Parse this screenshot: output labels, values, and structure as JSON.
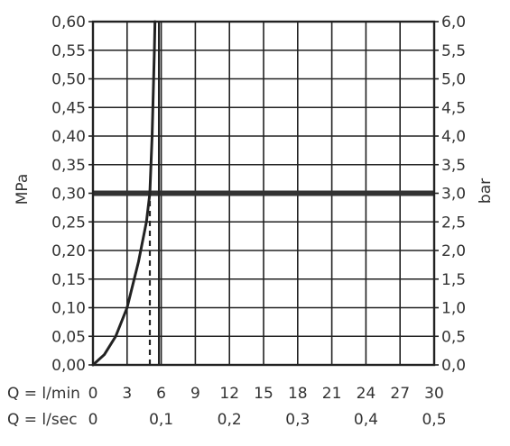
{
  "chart_data": {
    "type": "line",
    "title": "",
    "ylabel_left": "MPa",
    "ylabel_right": "bar",
    "x_rows": [
      {
        "label": "Q = l/min",
        "ticks": [
          "0",
          "3",
          "6",
          "9",
          "12",
          "15",
          "18",
          "21",
          "24",
          "27",
          "30"
        ],
        "values": [
          0,
          3,
          6,
          9,
          12,
          15,
          18,
          21,
          24,
          27,
          30
        ]
      },
      {
        "label": "Q = l/sec",
        "ticks": [
          "0",
          "0,1",
          "0,2",
          "0,3",
          "0,4",
          "0,5"
        ],
        "values": [
          0,
          0.1,
          0.2,
          0.3,
          0.4,
          0.5
        ]
      }
    ],
    "xlim": [
      0,
      30
    ],
    "ylim_left": [
      0,
      0.6
    ],
    "ylim_right": [
      0,
      6.0
    ],
    "y_ticks_left": [
      "0,00",
      "0,05",
      "0,10",
      "0,15",
      "0,20",
      "0,25",
      "0,30",
      "0,35",
      "0,40",
      "0,45",
      "0,50",
      "0,55",
      "0,60"
    ],
    "y_ticks_right": [
      "0,0",
      "0,5",
      "1,0",
      "1,5",
      "2,0",
      "2,5",
      "3,0",
      "3,5",
      "4,0",
      "4,5",
      "5,0",
      "5,5",
      "6,0"
    ],
    "y_tick_values": [
      0,
      0.05,
      0.1,
      0.15,
      0.2,
      0.25,
      0.3,
      0.35,
      0.4,
      0.45,
      0.5,
      0.55,
      0.6
    ],
    "grid": true,
    "series": [
      {
        "x": [
          0,
          1.0,
          2.0,
          3.0,
          4.0,
          4.7,
          5.0,
          5.2,
          5.4,
          5.45
        ],
        "y": [
          0,
          0.018,
          0.05,
          0.1,
          0.18,
          0.25,
          0.3,
          0.4,
          0.55,
          0.6
        ],
        "style": "solid"
      }
    ],
    "reference_lines": [
      {
        "orientation": "horizontal",
        "y": 0.3,
        "style": "bold"
      },
      {
        "orientation": "vertical",
        "x": 5.0,
        "y_range": [
          0,
          0.3
        ],
        "style": "dashed"
      },
      {
        "orientation": "vertical",
        "x": 5.8,
        "y_range": [
          0,
          0.6
        ],
        "style": "solid"
      }
    ]
  }
}
